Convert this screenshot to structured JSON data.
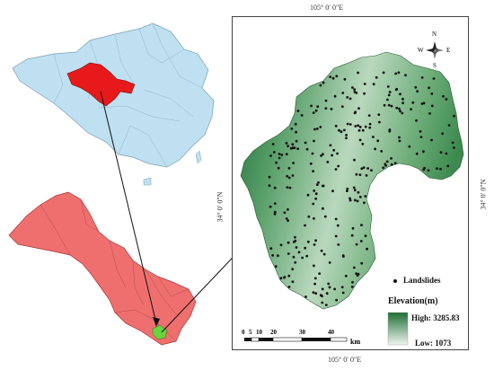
{
  "coords": {
    "top": "105° 0′ 0″E",
    "bottom": "105° 0′ 0″E",
    "left": "34° 0′ 0″N",
    "right": "34° 0′ 0″N"
  },
  "compass": {
    "n": "N",
    "e": "E",
    "s": "S",
    "w": "W"
  },
  "legend": {
    "points_label": "Landslides",
    "elevation_title": "Elevation(m)",
    "high_label": "High: 3285.83",
    "low_label": "Low: 1073",
    "ramp_high_color": "#1f6e35",
    "ramp_low_color": "#eef5ee"
  },
  "scale_bar": {
    "ticks": [
      "0",
      "5",
      "10",
      "20",
      "30",
      "40"
    ],
    "unit": "km"
  },
  "colors": {
    "china": "#bfe0f0",
    "highlight_province": "#e8191b",
    "gansu": "#ef6f6f",
    "study_area_small": "#6ad23c"
  }
}
